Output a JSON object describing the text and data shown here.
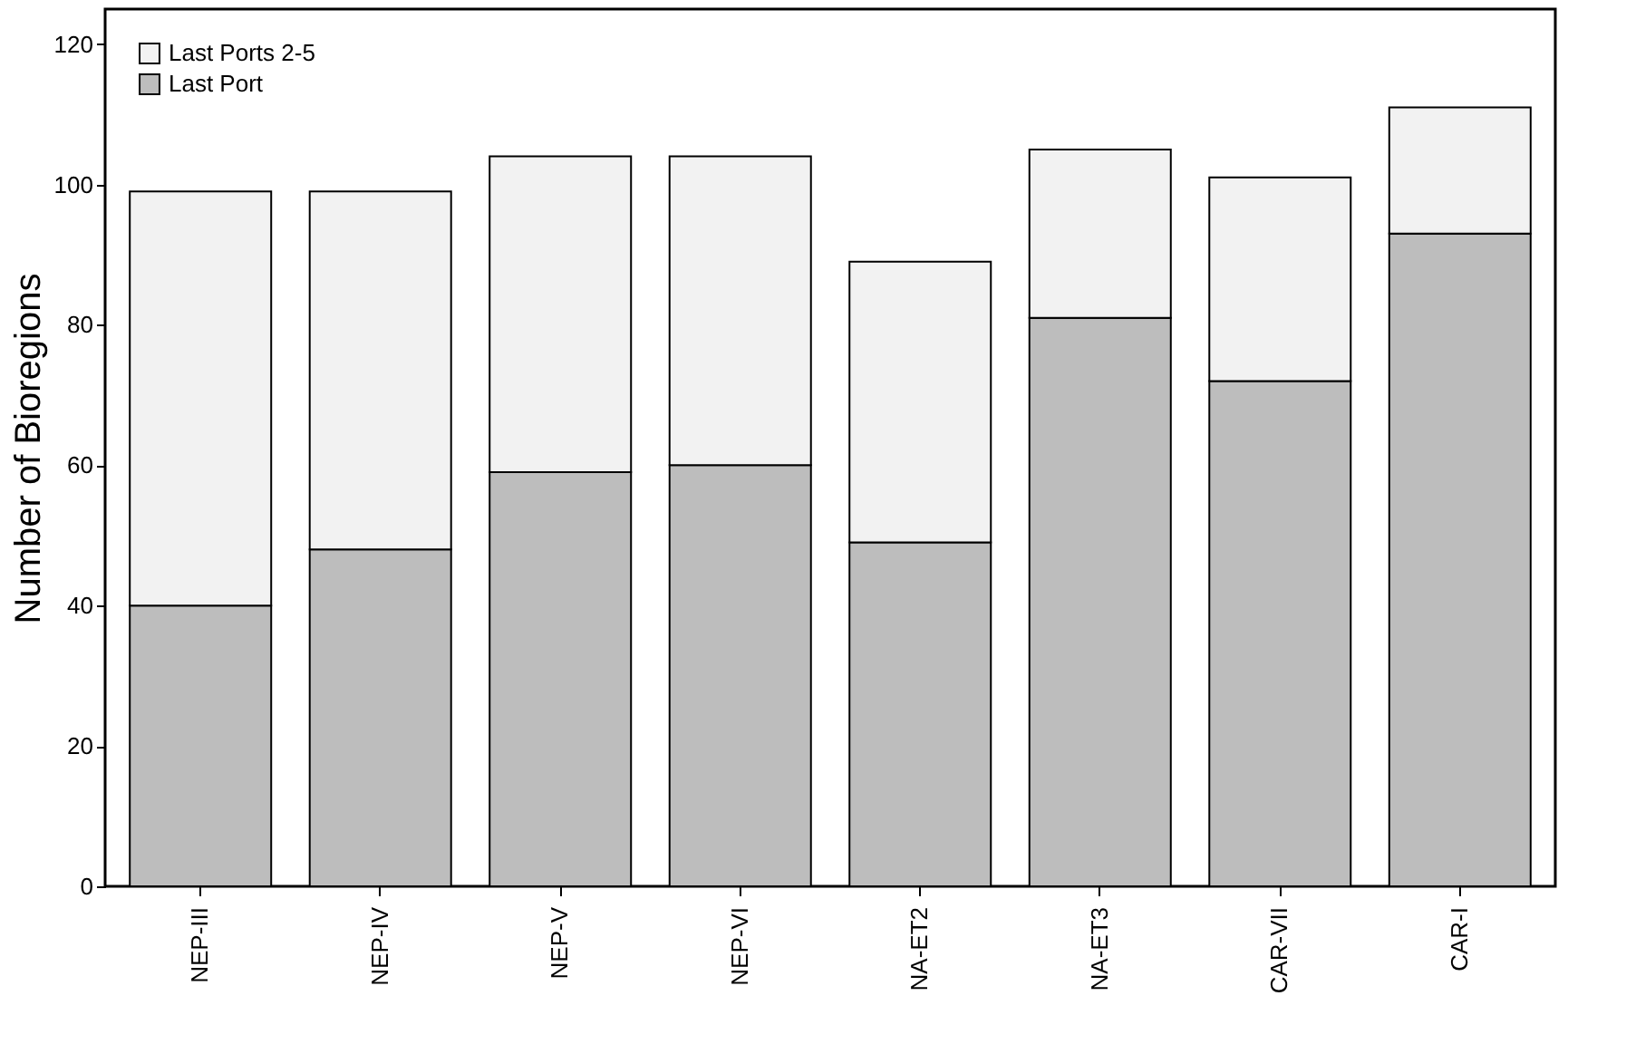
{
  "chart_data": {
    "type": "bar",
    "stacked": true,
    "ylabel": "Number of Bioregions",
    "categories": [
      "NEP-III",
      "NEP-IV",
      "NEP-V",
      "NEP-VI",
      "NA-ET2",
      "NA-ET3",
      "CAR-VII",
      "CAR-I"
    ],
    "series": [
      {
        "name": "Last Port",
        "color": "#bdbdbd",
        "values": [
          40,
          48,
          59,
          60,
          49,
          81,
          72,
          93
        ]
      },
      {
        "name": "Last Ports 2-5",
        "color": "#f2f2f2",
        "values": [
          59,
          51,
          45,
          44,
          40,
          24,
          29,
          18
        ]
      }
    ],
    "ylim": [
      0,
      125
    ],
    "yticks": [
      0,
      20,
      40,
      60,
      80,
      100,
      120
    ],
    "grid": false,
    "legend": "top left"
  }
}
